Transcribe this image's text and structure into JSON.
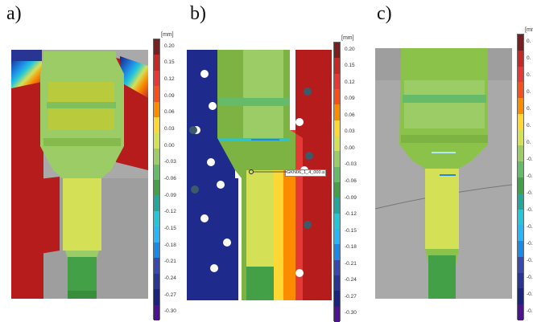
{
  "panels": [
    {
      "label": "a)"
    },
    {
      "label": "b)"
    },
    {
      "label": "c)"
    }
  ],
  "colorbar": {
    "unit": "[mm]",
    "ticks": [
      "0.20",
      "0.15",
      "0.12",
      "0.09",
      "0.06",
      "0.03",
      "0.00",
      "-0.03",
      "-0.06",
      "-0.09",
      "-0.12",
      "-0.15",
      "-0.18",
      "-0.21",
      "-0.24",
      "-0.27",
      "-0.30"
    ],
    "colors": [
      "#7a1f1f",
      "#c62828",
      "#e53935",
      "#f4511e",
      "#fb8c00",
      "#fdd835",
      "#d4e157",
      "#9ccc65",
      "#66bb6a",
      "#43a047",
      "#26a69a",
      "#26c6da",
      "#29b6f6",
      "#1e88e5",
      "#3949ab",
      "#283593",
      "#1a237e",
      "#4a148c"
    ]
  },
  "scale_a": {
    "ticks": [
      "0.20",
      "0.15",
      "0.12",
      "0.09",
      "0.06",
      "0.03",
      "0.00",
      "-0.03",
      "-0.06",
      "-0.09",
      "-0.12",
      "-0.15",
      "-0.18",
      "-0.21",
      "-0.24",
      "-0.27",
      "-0.30"
    ]
  },
  "scale_c_partial": {
    "ticks": [
      "0.",
      "0.",
      "0.",
      "0.",
      "0.",
      "0.",
      "0.",
      "-0.",
      "-0.",
      "-0.",
      "-0.",
      "-0.",
      "-0.",
      "-0.",
      "-0.",
      "-0.",
      "-0."
    ]
  },
  "annotation": {
    "text": "GKN06_1_4_000.a"
  }
}
